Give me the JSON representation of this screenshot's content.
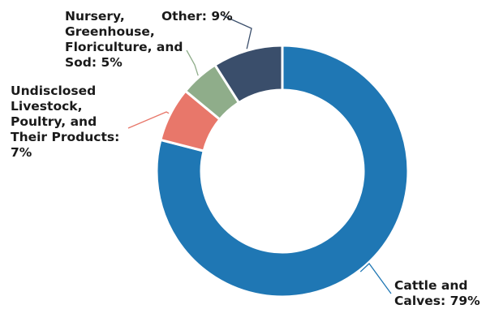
{
  "chart_data": {
    "type": "pie",
    "variant": "donut",
    "title": "",
    "slices": [
      {
        "label": "Cattle and Calves",
        "value": 79,
        "value_label": "79%",
        "color": "#1f77b4",
        "label_lines": [
          "Cattle and",
          "Calves: 79%"
        ]
      },
      {
        "label": "Undisclosed Livestock, Poultry, and Their Products",
        "value": 7,
        "value_label": "7%",
        "color": "#e8776a",
        "label_lines": [
          "Undisclosed",
          "Livestock,",
          "Poultry, and",
          "Their Products:",
          "7%"
        ]
      },
      {
        "label": "Nursery, Greenhouse, Floriculture, and Sod",
        "value": 5,
        "value_label": "5%",
        "color": "#8fad8a",
        "label_lines": [
          "Nursery,",
          "Greenhouse,",
          "Floriculture, and",
          "Sod: 5%"
        ]
      },
      {
        "label": "Other",
        "value": 9,
        "value_label": "9%",
        "color": "#3a4e6b",
        "label_lines": [
          "Other: 9%"
        ]
      }
    ],
    "legend": "none",
    "label_placement": "outside with leader lines"
  }
}
